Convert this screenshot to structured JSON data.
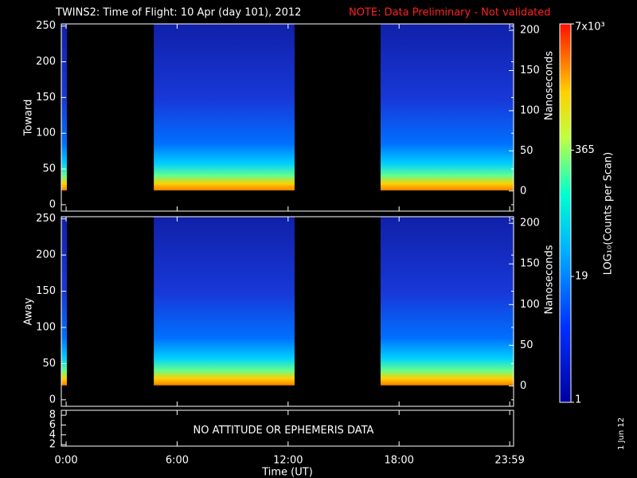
{
  "title": "TWINS2: Time of Flight: 10 Apr (day 101), 2012",
  "note": "NOTE: Data Preliminary - Not validated",
  "date_stamp": "1 Jun 12",
  "time_axis": {
    "xlabel": "Time (UT)",
    "xlim": [
      -0.26,
      24.19
    ],
    "xticks": [
      {
        "value": 0,
        "label": "0:00"
      },
      {
        "value": 6,
        "label": "6:00"
      },
      {
        "value": 12,
        "label": "12:00"
      },
      {
        "value": 18,
        "label": "18:00"
      },
      {
        "value": 23.98,
        "label": "23:59"
      }
    ]
  },
  "colorbar": {
    "label": "LOG₁₀(Counts per Scan)",
    "lim": [
      1,
      7000
    ],
    "log": true,
    "ticks": [
      1,
      19,
      365,
      {
        "value": 7000,
        "label": "7x10³"
      }
    ]
  },
  "chart_data": [
    {
      "type": "spectrogram",
      "ylabel": "Toward",
      "y2label": "Nanoseconds",
      "segments": [
        [
          -0.26,
          0.04
        ],
        [
          4.74,
          12.35
        ],
        [
          17.0,
          24.19
        ]
      ],
      "floor": 20,
      "ylim": [
        -9,
        253
      ],
      "yticks": [
        0,
        50,
        100,
        150,
        200,
        250
      ],
      "y2lim": [
        -25,
        208
      ],
      "y2ticks": [
        0,
        50,
        100,
        150,
        200
      ]
    },
    {
      "type": "spectrogram",
      "ylabel": "Away",
      "y2label": "Nanoseconds",
      "segments": [
        [
          -0.26,
          0.04
        ],
        [
          4.74,
          12.35
        ],
        [
          17.0,
          24.19
        ]
      ],
      "floor": 20,
      "ylim": [
        -9,
        253
      ],
      "yticks": [
        0,
        50,
        100,
        150,
        200,
        250
      ],
      "y2lim": [
        -25,
        208
      ],
      "y2ticks": [
        0,
        50,
        100,
        150,
        200
      ]
    },
    {
      "type": "message",
      "message": "NO ATTITUDE OR EPHEMERIS DATA",
      "ylim": [
        1.7,
        9
      ],
      "yticks": [
        2,
        4,
        6,
        8
      ]
    }
  ]
}
